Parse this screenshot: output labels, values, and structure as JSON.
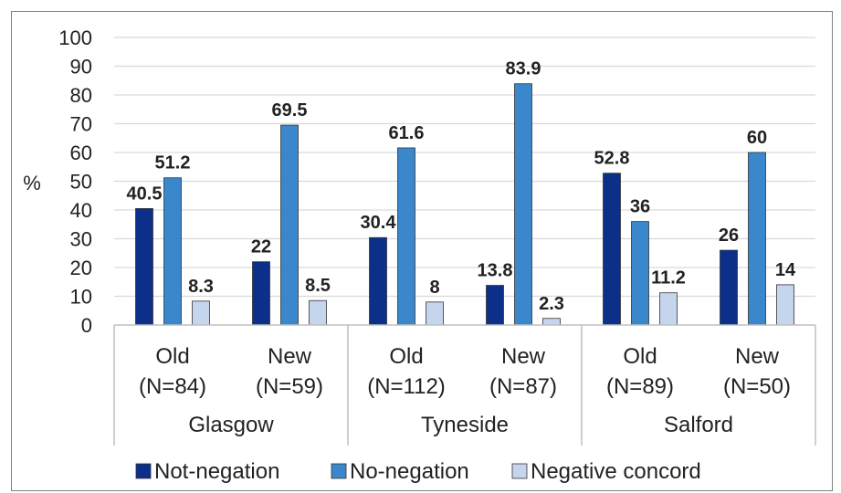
{
  "chart_data": {
    "type": "bar",
    "title": "",
    "ylabel": "%",
    "xlabel": "",
    "ylim": [
      0,
      100
    ],
    "yticks": [
      0,
      10,
      20,
      30,
      40,
      50,
      60,
      70,
      80,
      90,
      100
    ],
    "grid": true,
    "legend_position": "bottom",
    "groups": [
      "Glasgow",
      "Tyneside",
      "Salford"
    ],
    "categories": [
      "Old\n(N=84)",
      "New\n(N=59)",
      "Old\n(N=112)",
      "New\n(N=87)",
      "Old\n(N=89)",
      "New\n(N=50)"
    ],
    "category_lines": [
      [
        "Old",
        "(N=84)"
      ],
      [
        "New",
        "(N=59)"
      ],
      [
        "Old",
        "(N=112)"
      ],
      [
        "New",
        "(N=87)"
      ],
      [
        "Old",
        "(N=89)"
      ],
      [
        "New",
        "(N=50)"
      ]
    ],
    "series": [
      {
        "name": "Not-negation",
        "color": "#0c2f8a",
        "values": [
          40.5,
          22,
          30.4,
          13.8,
          52.8,
          26
        ]
      },
      {
        "name": "No-negation",
        "color": "#3a87cc",
        "values": [
          51.2,
          69.5,
          61.6,
          83.9,
          36,
          60
        ]
      },
      {
        "name": "Negative concord",
        "color": "#c5d5ee",
        "values": [
          8.3,
          8.5,
          8,
          2.3,
          11.2,
          14
        ]
      }
    ]
  }
}
